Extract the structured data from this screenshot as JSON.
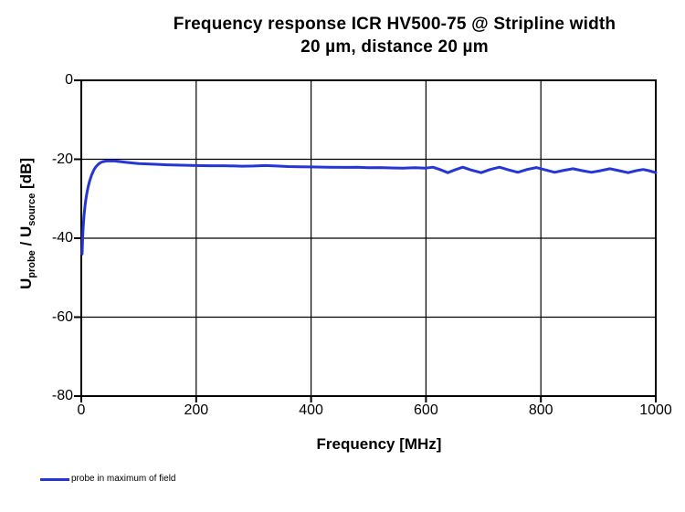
{
  "title": {
    "line1": "Frequency response ICR HV500-75 @ Stripline width",
    "line2": "20 µm, distance 20 µm"
  },
  "x_axis": {
    "label": "Frequency [MHz]",
    "tick_labels": [
      "0",
      "200",
      "400",
      "600",
      "800",
      "1000"
    ],
    "tick_values": [
      0,
      200,
      400,
      600,
      800,
      1000
    ],
    "gridline_values": [
      200,
      400,
      600,
      800
    ],
    "min": 0,
    "max": 1000
  },
  "y_axis": {
    "label_parts": [
      {
        "text": "U"
      },
      {
        "text": "probe",
        "sub": true
      },
      {
        "text": " / U"
      },
      {
        "text": "source",
        "sub": true
      },
      {
        "text": " [dB]"
      }
    ],
    "tick_labels": [
      "0",
      "-20",
      "-40",
      "-60",
      "-80"
    ],
    "tick_values": [
      0,
      -20,
      -40,
      -60,
      -80
    ],
    "gridline_values": [
      -20,
      -40,
      -60
    ],
    "min": -80,
    "max": 0
  },
  "legend": {
    "label": "probe in maximum of field"
  },
  "colors": {
    "line": "#2636d4",
    "axis": "#000000",
    "grid": "#000000",
    "text": "#000000",
    "background": "#ffffff"
  },
  "chart_data": {
    "type": "line",
    "title": "Frequency response ICR HV500-75 @ Stripline width 20 µm, distance 20 µm",
    "xlabel": "Frequency [MHz]",
    "ylabel": "U_probe / U_source [dB]",
    "xlim": [
      0,
      1000
    ],
    "ylim": [
      -80,
      0
    ],
    "grid": true,
    "legend_position": "bottom-left",
    "series": [
      {
        "name": "probe in maximum of field",
        "color": "#2636d4",
        "points": [
          [
            1.5,
            -44.0
          ],
          [
            2,
            -41.5
          ],
          [
            2.5,
            -39.5
          ],
          [
            3,
            -38.0
          ],
          [
            4,
            -35.8
          ],
          [
            5,
            -34.0
          ],
          [
            6,
            -32.5
          ],
          [
            7,
            -31.2
          ],
          [
            8,
            -30.2
          ],
          [
            9,
            -29.2
          ],
          [
            10,
            -28.4
          ],
          [
            12,
            -27.0
          ],
          [
            14,
            -25.8
          ],
          [
            16,
            -24.8
          ],
          [
            18,
            -24.0
          ],
          [
            20,
            -23.3
          ],
          [
            23,
            -22.4
          ],
          [
            26,
            -21.8
          ],
          [
            30,
            -21.2
          ],
          [
            34,
            -20.8
          ],
          [
            38,
            -20.6
          ],
          [
            44,
            -20.45
          ],
          [
            50,
            -20.4
          ],
          [
            58,
            -20.45
          ],
          [
            68,
            -20.6
          ],
          [
            80,
            -20.8
          ],
          [
            100,
            -21.1
          ],
          [
            125,
            -21.25
          ],
          [
            150,
            -21.4
          ],
          [
            175,
            -21.5
          ],
          [
            200,
            -21.6
          ],
          [
            225,
            -21.65
          ],
          [
            250,
            -21.65
          ],
          [
            280,
            -21.75
          ],
          [
            300,
            -21.7
          ],
          [
            320,
            -21.6
          ],
          [
            340,
            -21.7
          ],
          [
            360,
            -21.85
          ],
          [
            380,
            -21.9
          ],
          [
            400,
            -21.95
          ],
          [
            430,
            -22.0
          ],
          [
            460,
            -22.05
          ],
          [
            480,
            -22.0
          ],
          [
            500,
            -22.15
          ],
          [
            520,
            -22.1
          ],
          [
            540,
            -22.2
          ],
          [
            560,
            -22.25
          ],
          [
            580,
            -22.15
          ],
          [
            600,
            -22.25
          ],
          [
            612,
            -22.0
          ],
          [
            624,
            -22.6
          ],
          [
            638,
            -23.4
          ],
          [
            650,
            -22.7
          ],
          [
            664,
            -22.0
          ],
          [
            678,
            -22.7
          ],
          [
            696,
            -23.4
          ],
          [
            712,
            -22.6
          ],
          [
            728,
            -22.0
          ],
          [
            744,
            -22.7
          ],
          [
            760,
            -23.3
          ],
          [
            776,
            -22.6
          ],
          [
            792,
            -22.1
          ],
          [
            808,
            -22.7
          ],
          [
            824,
            -23.3
          ],
          [
            840,
            -22.8
          ],
          [
            856,
            -22.4
          ],
          [
            872,
            -22.9
          ],
          [
            888,
            -23.3
          ],
          [
            904,
            -22.9
          ],
          [
            920,
            -22.4
          ],
          [
            936,
            -22.9
          ],
          [
            952,
            -23.4
          ],
          [
            966,
            -22.9
          ],
          [
            978,
            -22.6
          ],
          [
            988,
            -22.9
          ],
          [
            1000,
            -23.4
          ]
        ]
      }
    ]
  }
}
